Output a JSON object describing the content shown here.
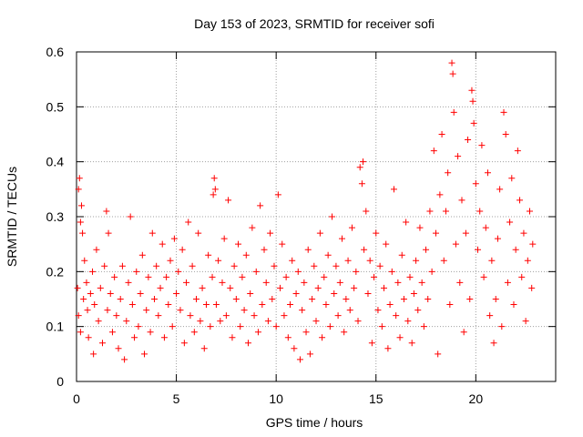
{
  "chart_data": {
    "type": "scatter",
    "title": "Day 153 of 2023, SRMTID for receiver sofi",
    "xlabel": "GPS time / hours",
    "ylabel": "SRMTID / TECUs",
    "xlim": [
      0,
      24
    ],
    "ylim": [
      0,
      0.6
    ],
    "xticks": [
      0,
      5,
      10,
      15,
      20
    ],
    "xtick_labels": [
      "0",
      "5",
      "10",
      "15",
      "20"
    ],
    "yticks": [
      0,
      0.1,
      0.2,
      0.3,
      0.4,
      0.5,
      0.6
    ],
    "ytick_labels": [
      "0",
      "0.1",
      "0.2",
      "0.3",
      "0.4",
      "0.5",
      "0.6"
    ],
    "grid": true,
    "marker": "+",
    "color": "#ff0000",
    "series": [
      {
        "name": "SRMTID",
        "points": [
          [
            0.05,
            0.17
          ],
          [
            0.1,
            0.35
          ],
          [
            0.15,
            0.37
          ],
          [
            0.2,
            0.29
          ],
          [
            0.25,
            0.32
          ],
          [
            0.3,
            0.27
          ],
          [
            0.1,
            0.12
          ],
          [
            0.2,
            0.09
          ],
          [
            0.35,
            0.15
          ],
          [
            0.4,
            0.22
          ],
          [
            0.5,
            0.18
          ],
          [
            0.55,
            0.13
          ],
          [
            0.6,
            0.08
          ],
          [
            0.7,
            0.16
          ],
          [
            0.8,
            0.2
          ],
          [
            0.85,
            0.05
          ],
          [
            0.9,
            0.14
          ],
          [
            1.0,
            0.24
          ],
          [
            1.1,
            0.11
          ],
          [
            1.2,
            0.17
          ],
          [
            1.3,
            0.07
          ],
          [
            1.4,
            0.21
          ],
          [
            1.5,
            0.31
          ],
          [
            1.55,
            0.13
          ],
          [
            1.6,
            0.27
          ],
          [
            1.7,
            0.16
          ],
          [
            1.8,
            0.09
          ],
          [
            1.9,
            0.19
          ],
          [
            2.0,
            0.12
          ],
          [
            2.1,
            0.06
          ],
          [
            2.2,
            0.15
          ],
          [
            2.3,
            0.21
          ],
          [
            2.4,
            0.04
          ],
          [
            2.5,
            0.11
          ],
          [
            2.6,
            0.18
          ],
          [
            2.7,
            0.3
          ],
          [
            2.8,
            0.14
          ],
          [
            2.9,
            0.08
          ],
          [
            3.0,
            0.2
          ],
          [
            3.1,
            0.1
          ],
          [
            3.2,
            0.16
          ],
          [
            3.3,
            0.23
          ],
          [
            3.4,
            0.05
          ],
          [
            3.5,
            0.13
          ],
          [
            3.6,
            0.19
          ],
          [
            3.7,
            0.09
          ],
          [
            3.8,
            0.27
          ],
          [
            3.9,
            0.15
          ],
          [
            4.0,
            0.21
          ],
          [
            4.1,
            0.12
          ],
          [
            4.2,
            0.17
          ],
          [
            4.3,
            0.25
          ],
          [
            4.4,
            0.08
          ],
          [
            4.5,
            0.19
          ],
          [
            4.6,
            0.14
          ],
          [
            4.7,
            0.22
          ],
          [
            4.8,
            0.1
          ],
          [
            4.9,
            0.26
          ],
          [
            5.0,
            0.16
          ],
          [
            5.1,
            0.2
          ],
          [
            5.2,
            0.13
          ],
          [
            5.3,
            0.24
          ],
          [
            5.4,
            0.07
          ],
          [
            5.5,
            0.18
          ],
          [
            5.6,
            0.29
          ],
          [
            5.7,
            0.12
          ],
          [
            5.8,
            0.21
          ],
          [
            5.9,
            0.09
          ],
          [
            6.0,
            0.15
          ],
          [
            6.1,
            0.27
          ],
          [
            6.2,
            0.11
          ],
          [
            6.3,
            0.17
          ],
          [
            6.4,
            0.06
          ],
          [
            6.5,
            0.14
          ],
          [
            6.6,
            0.23
          ],
          [
            6.7,
            0.1
          ],
          [
            6.8,
            0.19
          ],
          [
            6.85,
            0.34
          ],
          [
            6.9,
            0.37
          ],
          [
            6.95,
            0.35
          ],
          [
            7.0,
            0.14
          ],
          [
            7.1,
            0.22
          ],
          [
            7.2,
            0.11
          ],
          [
            7.3,
            0.18
          ],
          [
            7.4,
            0.26
          ],
          [
            7.5,
            0.12
          ],
          [
            7.6,
            0.33
          ],
          [
            7.7,
            0.17
          ],
          [
            7.8,
            0.08
          ],
          [
            7.9,
            0.21
          ],
          [
            8.0,
            0.15
          ],
          [
            8.1,
            0.25
          ],
          [
            8.2,
            0.1
          ],
          [
            8.3,
            0.19
          ],
          [
            8.4,
            0.13
          ],
          [
            8.5,
            0.23
          ],
          [
            8.6,
            0.07
          ],
          [
            8.7,
            0.16
          ],
          [
            8.8,
            0.28
          ],
          [
            8.9,
            0.12
          ],
          [
            9.0,
            0.2
          ],
          [
            9.1,
            0.09
          ],
          [
            9.2,
            0.32
          ],
          [
            9.3,
            0.14
          ],
          [
            9.4,
            0.24
          ],
          [
            9.5,
            0.18
          ],
          [
            9.6,
            0.11
          ],
          [
            9.7,
            0.27
          ],
          [
            9.8,
            0.15
          ],
          [
            9.9,
            0.21
          ],
          [
            10.0,
            0.1
          ],
          [
            10.1,
            0.34
          ],
          [
            10.2,
            0.17
          ],
          [
            10.3,
            0.25
          ],
          [
            10.4,
            0.12
          ],
          [
            10.5,
            0.19
          ],
          [
            10.6,
            0.08
          ],
          [
            10.7,
            0.14
          ],
          [
            10.8,
            0.22
          ],
          [
            10.9,
            0.06
          ],
          [
            11.0,
            0.16
          ],
          [
            11.1,
            0.2
          ],
          [
            11.2,
            0.04
          ],
          [
            11.3,
            0.13
          ],
          [
            11.4,
            0.18
          ],
          [
            11.5,
            0.09
          ],
          [
            11.6,
            0.24
          ],
          [
            11.7,
            0.05
          ],
          [
            11.8,
            0.15
          ],
          [
            11.9,
            0.21
          ],
          [
            12.0,
            0.11
          ],
          [
            12.1,
            0.17
          ],
          [
            12.2,
            0.27
          ],
          [
            12.3,
            0.08
          ],
          [
            12.4,
            0.19
          ],
          [
            12.5,
            0.14
          ],
          [
            12.6,
            0.23
          ],
          [
            12.7,
            0.1
          ],
          [
            12.8,
            0.3
          ],
          [
            12.9,
            0.16
          ],
          [
            13.0,
            0.21
          ],
          [
            13.1,
            0.12
          ],
          [
            13.2,
            0.18
          ],
          [
            13.3,
            0.26
          ],
          [
            13.4,
            0.09
          ],
          [
            13.5,
            0.15
          ],
          [
            13.6,
            0.22
          ],
          [
            13.7,
            0.13
          ],
          [
            13.8,
            0.28
          ],
          [
            13.9,
            0.17
          ],
          [
            14.0,
            0.2
          ],
          [
            14.1,
            0.11
          ],
          [
            14.2,
            0.39
          ],
          [
            14.3,
            0.36
          ],
          [
            14.35,
            0.4
          ],
          [
            14.4,
            0.24
          ],
          [
            14.5,
            0.31
          ],
          [
            14.6,
            0.16
          ],
          [
            14.7,
            0.22
          ],
          [
            14.8,
            0.07
          ],
          [
            14.9,
            0.19
          ],
          [
            15.0,
            0.27
          ],
          [
            15.1,
            0.13
          ],
          [
            15.2,
            0.21
          ],
          [
            15.3,
            0.1
          ],
          [
            15.4,
            0.17
          ],
          [
            15.5,
            0.25
          ],
          [
            15.6,
            0.06
          ],
          [
            15.7,
            0.14
          ],
          [
            15.8,
            0.2
          ],
          [
            15.9,
            0.35
          ],
          [
            16.0,
            0.12
          ],
          [
            16.1,
            0.18
          ],
          [
            16.2,
            0.08
          ],
          [
            16.3,
            0.23
          ],
          [
            16.4,
            0.15
          ],
          [
            16.5,
            0.29
          ],
          [
            16.6,
            0.11
          ],
          [
            16.7,
            0.19
          ],
          [
            16.8,
            0.07
          ],
          [
            16.9,
            0.16
          ],
          [
            17.0,
            0.22
          ],
          [
            17.1,
            0.13
          ],
          [
            17.2,
            0.28
          ],
          [
            17.3,
            0.18
          ],
          [
            17.4,
            0.1
          ],
          [
            17.5,
            0.24
          ],
          [
            17.6,
            0.15
          ],
          [
            17.7,
            0.31
          ],
          [
            17.8,
            0.2
          ],
          [
            17.9,
            0.42
          ],
          [
            18.0,
            0.27
          ],
          [
            18.1,
            0.05
          ],
          [
            18.2,
            0.34
          ],
          [
            18.3,
            0.45
          ],
          [
            18.4,
            0.22
          ],
          [
            18.5,
            0.31
          ],
          [
            18.6,
            0.38
          ],
          [
            18.7,
            0.14
          ],
          [
            18.8,
            0.58
          ],
          [
            18.85,
            0.56
          ],
          [
            18.9,
            0.49
          ],
          [
            19.0,
            0.25
          ],
          [
            19.1,
            0.41
          ],
          [
            19.2,
            0.18
          ],
          [
            19.3,
            0.33
          ],
          [
            19.4,
            0.09
          ],
          [
            19.5,
            0.27
          ],
          [
            19.6,
            0.44
          ],
          [
            19.7,
            0.15
          ],
          [
            19.8,
            0.53
          ],
          [
            19.85,
            0.51
          ],
          [
            19.9,
            0.47
          ],
          [
            20.0,
            0.36
          ],
          [
            20.1,
            0.24
          ],
          [
            20.2,
            0.31
          ],
          [
            20.3,
            0.43
          ],
          [
            20.4,
            0.19
          ],
          [
            20.5,
            0.28
          ],
          [
            20.6,
            0.38
          ],
          [
            20.7,
            0.12
          ],
          [
            20.8,
            0.22
          ],
          [
            20.9,
            0.07
          ],
          [
            21.0,
            0.15
          ],
          [
            21.1,
            0.26
          ],
          [
            21.2,
            0.35
          ],
          [
            21.3,
            0.1
          ],
          [
            21.4,
            0.49
          ],
          [
            21.5,
            0.45
          ],
          [
            21.6,
            0.18
          ],
          [
            21.7,
            0.29
          ],
          [
            21.8,
            0.37
          ],
          [
            21.9,
            0.14
          ],
          [
            22.0,
            0.24
          ],
          [
            22.1,
            0.42
          ],
          [
            22.2,
            0.33
          ],
          [
            22.3,
            0.19
          ],
          [
            22.4,
            0.27
          ],
          [
            22.5,
            0.11
          ],
          [
            22.6,
            0.22
          ],
          [
            22.7,
            0.31
          ],
          [
            22.8,
            0.17
          ],
          [
            22.85,
            0.25
          ]
        ]
      }
    ]
  }
}
